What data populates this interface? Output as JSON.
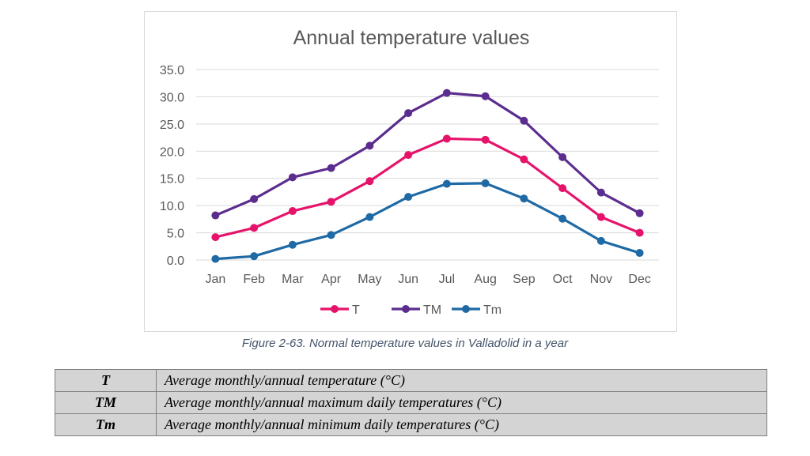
{
  "chart_data": {
    "type": "line",
    "title": "Annual temperature values",
    "categories": [
      "Jan",
      "Feb",
      "Mar",
      "Apr",
      "May",
      "Jun",
      "Jul",
      "Aug",
      "Sep",
      "Oct",
      "Nov",
      "Dec"
    ],
    "series": [
      {
        "name": "T",
        "color": "#e6136b",
        "values": [
          4.2,
          5.9,
          9.0,
          10.7,
          14.5,
          19.3,
          22.3,
          22.1,
          18.5,
          13.2,
          7.9,
          5.0
        ]
      },
      {
        "name": "TM",
        "color": "#5b2d8e",
        "values": [
          8.2,
          11.2,
          15.2,
          16.9,
          21.0,
          27.0,
          30.7,
          30.1,
          25.6,
          18.9,
          12.4,
          8.6
        ]
      },
      {
        "name": "Tm",
        "color": "#1f6aa5",
        "values": [
          0.2,
          0.7,
          2.8,
          4.6,
          7.9,
          11.6,
          14.0,
          14.1,
          11.3,
          7.6,
          3.5,
          1.3
        ]
      }
    ],
    "y_ticks": [
      "0.0",
      "5.0",
      "10.0",
      "15.0",
      "20.0",
      "25.0",
      "30.0",
      "35.0"
    ],
    "ylim": [
      0,
      35
    ],
    "grid": true,
    "legend_position": "bottom"
  },
  "caption": "Figure 2-63. Normal temperature values in Valladolid in a year",
  "definitions": [
    {
      "symbol": "T",
      "description": "Average monthly/annual temperature (°C)"
    },
    {
      "symbol": "TM",
      "description": "Average monthly/annual maximum daily temperatures (°C)"
    },
    {
      "symbol": "Tm",
      "description": "Average monthly/annual minimum daily temperatures (°C)"
    }
  ]
}
